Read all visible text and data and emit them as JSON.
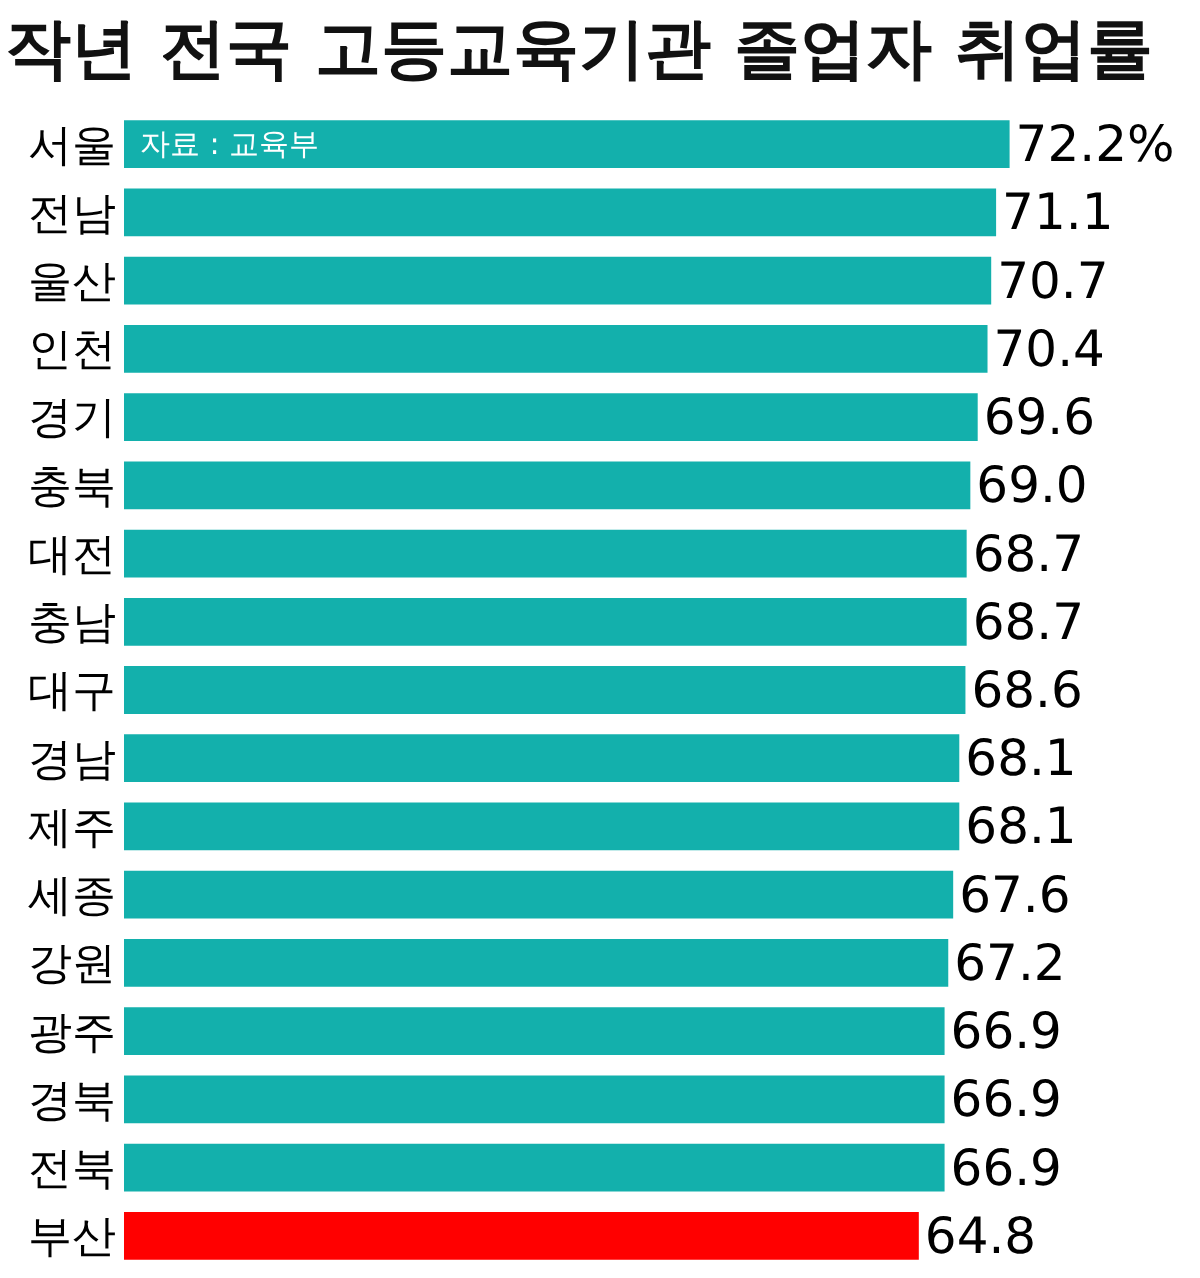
{
  "chart_data": {
    "type": "bar",
    "orientation": "horizontal",
    "title": "작년 전국 고등교육기관 졸업자 취업률",
    "categories": [
      "서울",
      "전남",
      "울산",
      "인천",
      "경기",
      "충북",
      "대전",
      "충남",
      "대구",
      "경남",
      "제주",
      "세종",
      "강원",
      "광주",
      "경북",
      "전북",
      "부산"
    ],
    "values": [
      72.2,
      71.1,
      70.7,
      70.4,
      69.6,
      69.0,
      68.7,
      68.7,
      68.6,
      68.1,
      68.1,
      67.6,
      67.2,
      66.9,
      66.9,
      66.9,
      64.8
    ],
    "value_labels": [
      "72.2%",
      "71.1",
      "70.7",
      "70.4",
      "69.6",
      "69.0",
      "68.7",
      "68.7",
      "68.6",
      "68.1",
      "68.1",
      "67.6",
      "67.2",
      "66.9",
      "66.9",
      "66.9",
      "64.8"
    ],
    "colors": [
      "#13b0ac",
      "#13b0ac",
      "#13b0ac",
      "#13b0ac",
      "#13b0ac",
      "#13b0ac",
      "#13b0ac",
      "#13b0ac",
      "#13b0ac",
      "#13b0ac",
      "#13b0ac",
      "#13b0ac",
      "#13b0ac",
      "#13b0ac",
      "#13b0ac",
      "#13b0ac",
      "#ff0000"
    ],
    "annotations": [
      "자료 : 교육부"
    ],
    "tick_labels": "y"
  }
}
